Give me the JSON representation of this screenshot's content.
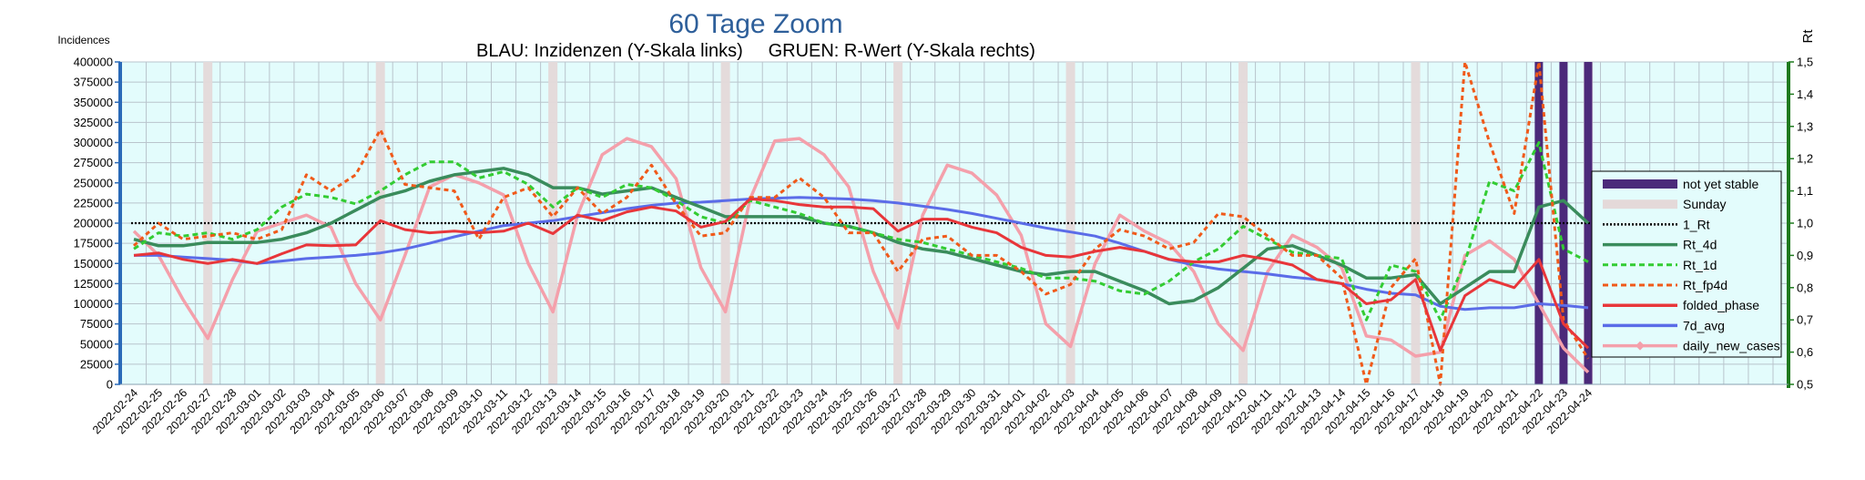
{
  "chart_data": {
    "type": "line",
    "title": "60 Tage Zoom",
    "subtitle": "BLAU: Inzidenzen (Y-Skala links)     GRUEN: R-Wert (Y-Skala rechts)",
    "ylabel_left": "Incidences",
    "ylabel_right": "Rt",
    "ylim_left": [
      0,
      400000
    ],
    "ylim_right": [
      0.5,
      1.5
    ],
    "yticks_left": [
      "0",
      "25000",
      "50000",
      "75000",
      "100000",
      "125000",
      "150000",
      "175000",
      "200000",
      "225000",
      "250000",
      "275000",
      "300000",
      "325000",
      "350000",
      "375000",
      "400000"
    ],
    "yticks_right": [
      "0,5",
      "0,6",
      "0,7",
      "0,8",
      "0,9",
      "1,0",
      "1,1",
      "1,2",
      "1,3",
      "1,4",
      "1,5"
    ],
    "grid": true,
    "legend_position": "right",
    "x": [
      "2022-02-24",
      "2022-02-25",
      "2022-02-26",
      "2022-02-27",
      "2022-02-28",
      "2022-03-01",
      "2022-03-02",
      "2022-03-03",
      "2022-03-04",
      "2022-03-05",
      "2022-03-06",
      "2022-03-07",
      "2022-03-08",
      "2022-03-09",
      "2022-03-10",
      "2022-03-11",
      "2022-03-12",
      "2022-03-13",
      "2022-03-14",
      "2022-03-15",
      "2022-03-16",
      "2022-03-17",
      "2022-03-18",
      "2022-03-19",
      "2022-03-20",
      "2022-03-21",
      "2022-03-22",
      "2022-03-23",
      "2022-03-24",
      "2022-03-25",
      "2022-03-26",
      "2022-03-27",
      "2022-03-28",
      "2022-03-29",
      "2022-03-30",
      "2022-03-31",
      "2022-04-01",
      "2022-04-02",
      "2022-04-03",
      "2022-04-04",
      "2022-04-05",
      "2022-04-06",
      "2022-04-07",
      "2022-04-08",
      "2022-04-09",
      "2022-04-10",
      "2022-04-11",
      "2022-04-12",
      "2022-04-13",
      "2022-04-14",
      "2022-04-15",
      "2022-04-16",
      "2022-04-17",
      "2022-04-18",
      "2022-04-19",
      "2022-04-20",
      "2022-04-21",
      "2022-04-22",
      "2022-04-23",
      "2022-04-24"
    ],
    "sundays": [
      "2022-02-27",
      "2022-03-06",
      "2022-03-13",
      "2022-03-20",
      "2022-03-27",
      "2022-04-03",
      "2022-04-10",
      "2022-04-17",
      "2022-04-24"
    ],
    "not_yet_stable": [
      "2022-04-22",
      "2022-04-23",
      "2022-04-24"
    ],
    "series": [
      {
        "name": "daily_new_cases",
        "axis": "left",
        "color": "#f4a0ab",
        "width": 3.5,
        "dash": "",
        "values": [
          190000,
          160000,
          105000,
          57000,
          130000,
          190000,
          200000,
          210000,
          195000,
          125000,
          80000,
          160000,
          245000,
          260000,
          250000,
          235000,
          150000,
          90000,
          210000,
          285000,
          305000,
          295000,
          255000,
          145000,
          90000,
          230000,
          302000,
          305000,
          285000,
          245000,
          140000,
          70000,
          210000,
          272000,
          262000,
          235000,
          185000,
          75000,
          47000,
          150000,
          210000,
          190000,
          175000,
          140000,
          75000,
          42000,
          140000,
          185000,
          170000,
          145000,
          60000,
          55000,
          35000,
          40000,
          160000,
          178000,
          155000,
          100000,
          45000,
          15000
        ]
      },
      {
        "name": "7d_avg",
        "axis": "left",
        "color": "#5b6ce8",
        "width": 3,
        "dash": "",
        "values": [
          160000,
          160000,
          158000,
          156000,
          154000,
          150000,
          153000,
          156000,
          158000,
          160000,
          163000,
          168000,
          175000,
          183000,
          190000,
          197000,
          200000,
          203000,
          208000,
          213000,
          218000,
          222000,
          225000,
          226000,
          228000,
          230000,
          231000,
          232000,
          231000,
          230000,
          228000,
          225000,
          221000,
          217000,
          212000,
          206000,
          200000,
          194000,
          189000,
          184000,
          175000,
          165000,
          155000,
          148000,
          143000,
          140000,
          137000,
          133000,
          130000,
          125000,
          118000,
          113000,
          111000,
          97000,
          93000,
          95000,
          95000,
          100000,
          98000,
          95000
        ]
      },
      {
        "name": "Rt_4d",
        "axis": "right",
        "color": "#3a8c5c",
        "width": 3.5,
        "dash": "",
        "values": [
          0.95,
          0.93,
          0.93,
          0.94,
          0.94,
          0.94,
          0.95,
          0.97,
          1.0,
          1.04,
          1.08,
          1.1,
          1.13,
          1.15,
          1.16,
          1.17,
          1.15,
          1.11,
          1.11,
          1.09,
          1.1,
          1.11,
          1.08,
          1.05,
          1.02,
          1.02,
          1.02,
          1.02,
          1.0,
          0.99,
          0.97,
          0.94,
          0.92,
          0.91,
          0.89,
          0.87,
          0.85,
          0.84,
          0.85,
          0.85,
          0.82,
          0.79,
          0.75,
          0.76,
          0.8,
          0.86,
          0.92,
          0.93,
          0.9,
          0.87,
          0.83,
          0.83,
          0.84,
          0.75,
          0.8,
          0.85,
          0.85,
          1.05,
          1.07,
          1.0
        ]
      },
      {
        "name": "Rt_1d",
        "axis": "right",
        "color": "#33cc33",
        "width": 3,
        "dash": "6,4",
        "values": [
          0.92,
          0.97,
          0.96,
          0.97,
          0.95,
          0.98,
          1.05,
          1.09,
          1.08,
          1.06,
          1.1,
          1.15,
          1.19,
          1.19,
          1.14,
          1.16,
          1.12,
          1.05,
          1.11,
          1.08,
          1.12,
          1.11,
          1.07,
          1.02,
          1.0,
          1.07,
          1.05,
          1.03,
          1.0,
          0.99,
          0.97,
          0.95,
          0.94,
          0.92,
          0.9,
          0.88,
          0.86,
          0.83,
          0.83,
          0.82,
          0.79,
          0.78,
          0.82,
          0.88,
          0.92,
          0.99,
          0.95,
          0.91,
          0.9,
          0.89,
          0.7,
          0.87,
          0.85,
          0.7,
          0.88,
          1.13,
          1.1,
          1.25,
          0.92,
          0.88
        ]
      },
      {
        "name": "Rt_fp4d",
        "axis": "right",
        "color": "#f05a1a",
        "width": 3,
        "dash": "5,4",
        "values": [
          0.93,
          1.0,
          0.95,
          0.96,
          0.97,
          0.95,
          0.98,
          1.15,
          1.1,
          1.15,
          1.29,
          1.12,
          1.11,
          1.1,
          0.95,
          1.08,
          1.11,
          1.02,
          1.11,
          1.03,
          1.08,
          1.18,
          1.06,
          0.96,
          0.97,
          1.08,
          1.08,
          1.14,
          1.08,
          0.97,
          0.97,
          0.85,
          0.95,
          0.96,
          0.9,
          0.9,
          0.85,
          0.78,
          0.81,
          0.92,
          0.98,
          0.96,
          0.92,
          0.94,
          1.03,
          1.02,
          0.96,
          0.9,
          0.9,
          0.83,
          0.5,
          0.8,
          0.89,
          0.5,
          1.5,
          1.25,
          1.03,
          1.5,
          0.7,
          0.58
        ]
      },
      {
        "name": "folded_phase",
        "axis": "left",
        "color": "#e8363a",
        "width": 3,
        "dash": "",
        "values": [
          160000,
          163000,
          155000,
          150000,
          155000,
          150000,
          162000,
          173000,
          172000,
          173000,
          203000,
          192000,
          188000,
          190000,
          188000,
          190000,
          200000,
          187000,
          210000,
          203000,
          214000,
          220000,
          215000,
          195000,
          202000,
          230000,
          228000,
          223000,
          220000,
          220000,
          218000,
          190000,
          205000,
          205000,
          195000,
          188000,
          170000,
          160000,
          158000,
          165000,
          170000,
          165000,
          155000,
          152000,
          152000,
          160000,
          155000,
          148000,
          130000,
          125000,
          100000,
          105000,
          130000,
          42000,
          110000,
          130000,
          120000,
          155000,
          75000,
          45000
        ]
      }
    ],
    "reference_line": {
      "name": "1_Rt",
      "value": 1.0,
      "axis": "right"
    },
    "legend": [
      {
        "label": "not yet stable",
        "kind": "bar",
        "color": "#4b2a7a"
      },
      {
        "label": "Sunday",
        "kind": "bar",
        "color": "#e4d9d9"
      },
      {
        "label": "1_Rt",
        "kind": "dot",
        "color": "#000000"
      },
      {
        "label": "Rt_4d",
        "kind": "line",
        "color": "#3a8c5c"
      },
      {
        "label": "Rt_1d",
        "kind": "dash",
        "color": "#33cc33"
      },
      {
        "label": "Rt_fp4d",
        "kind": "dash",
        "color": "#f05a1a"
      },
      {
        "label": "folded_phase",
        "kind": "line",
        "color": "#e8363a"
      },
      {
        "label": "7d_avg",
        "kind": "line",
        "color": "#5b6ce8"
      },
      {
        "label": "daily_new_cases",
        "kind": "marker",
        "color": "#f4a0ab"
      }
    ]
  }
}
